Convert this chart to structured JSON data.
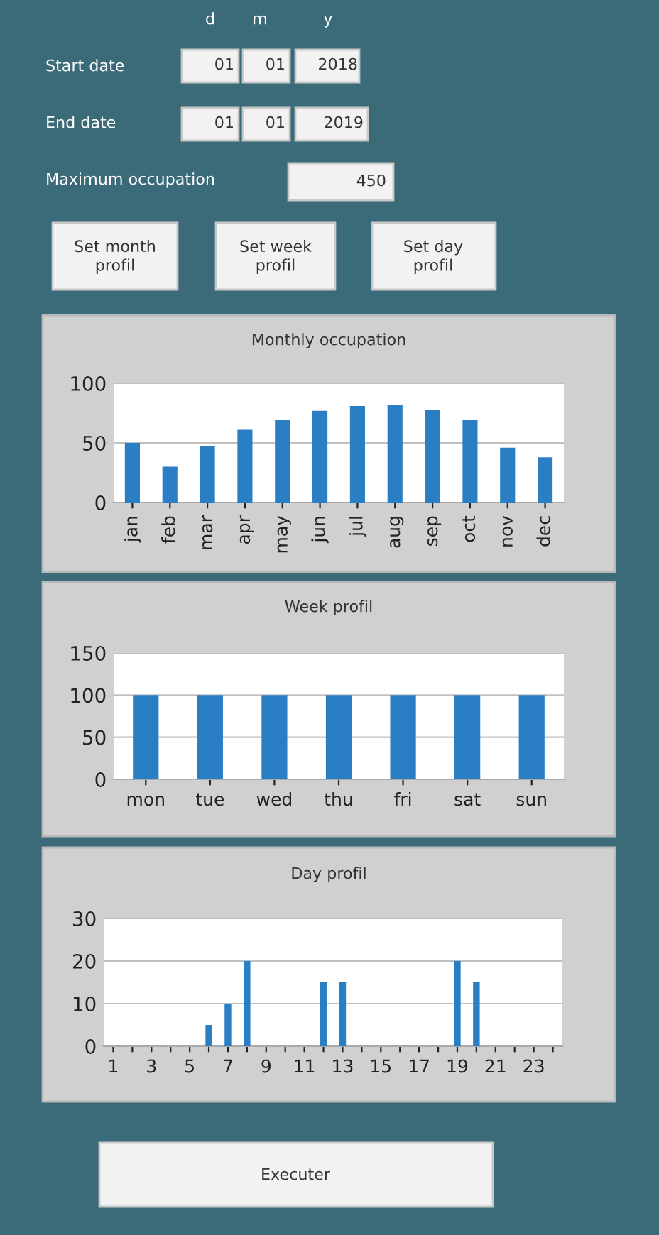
{
  "chart_data": [
    {
      "type": "other",
      "annotations": [
        "d",
        "m",
        "y",
        "Start date",
        "01",
        "01",
        "2018",
        "End date",
        "01",
        "01",
        "2019",
        "Maximum occupation",
        "450",
        "Set month\nprofil",
        "Set week\nprofil",
        "Set day\nprofil"
      ]
    },
    {
      "type": "bar",
      "title": "Monthly occupation",
      "categories": [
        "jan",
        "feb",
        "mar",
        "apr",
        "may",
        "jun",
        "jul",
        "aug",
        "sep",
        "oct",
        "nov",
        "dec"
      ],
      "values": [
        50,
        30,
        47,
        61,
        69,
        77,
        81,
        82,
        78,
        69,
        46,
        38
      ],
      "color": "#2a7fc4",
      "ylim": [
        0,
        100
      ],
      "yticks": [
        0,
        50,
        100
      ],
      "grid": "y"
    },
    {
      "type": "bar",
      "title": "Week profil",
      "categories": [
        "mon",
        "tue",
        "wed",
        "thu",
        "fri",
        "sat",
        "sun"
      ],
      "values": [
        100,
        100,
        100,
        100,
        100,
        100,
        100
      ],
      "color": "#2a7fc4",
      "ylim": [
        0,
        150
      ],
      "yticks": [
        0,
        50,
        100,
        150
      ],
      "grid": "y"
    },
    {
      "type": "bar",
      "title": "Day profil",
      "categories": [
        "1",
        null,
        "3",
        null,
        "5",
        null,
        "7",
        null,
        "9",
        null,
        "11",
        null,
        "13",
        null,
        "15",
        null,
        "17",
        null,
        "19",
        null,
        "21",
        null,
        "23",
        null
      ],
      "values": [
        0,
        0,
        0,
        0,
        0,
        5,
        10,
        20,
        0,
        0,
        0,
        15,
        15,
        0,
        0,
        0,
        0,
        0,
        20,
        15,
        0,
        0,
        0,
        0
      ],
      "color": "#2a7fc4",
      "ylim": [
        0,
        30
      ],
      "yticks": [
        0,
        10,
        20,
        30
      ],
      "grid": "y"
    },
    {
      "type": "other",
      "annotations": [
        "Executer"
      ]
    }
  ]
}
